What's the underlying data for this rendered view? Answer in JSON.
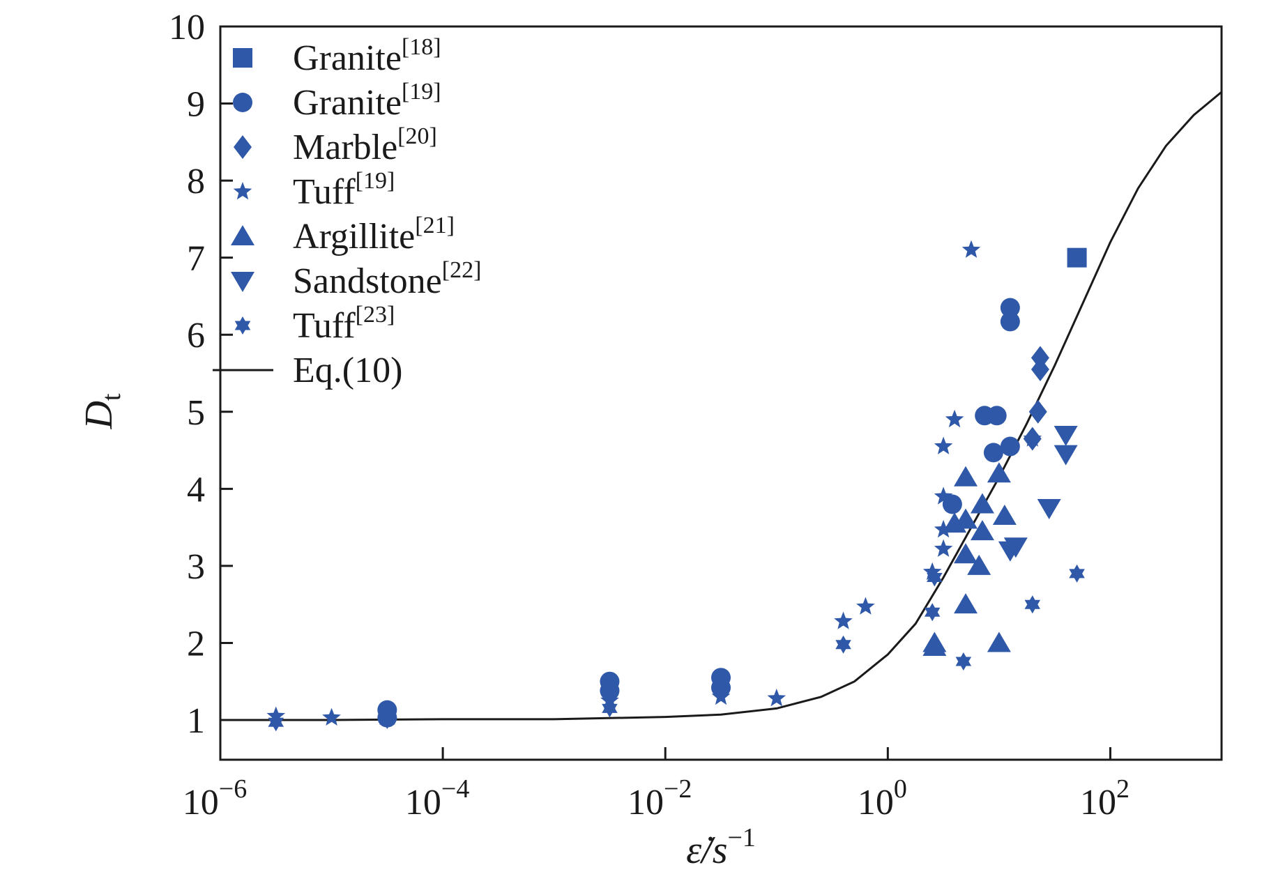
{
  "chart_data": {
    "type": "scatter",
    "title": "",
    "xlabel": "ε̇/s",
    "xlabel_sup": "−1",
    "ylabel": "D",
    "ylabel_sub": "t",
    "x_scale": "log10",
    "xlim_log10": [
      -6,
      3
    ],
    "ylim": [
      0.5,
      10
    ],
    "x_ticks": [
      {
        "base": "10",
        "exp": "−6",
        "log10": -6
      },
      {
        "base": "10",
        "exp": "−4",
        "log10": -4
      },
      {
        "base": "10",
        "exp": "−2",
        "log10": -2
      },
      {
        "base": "10",
        "exp": "0",
        "log10": 0
      },
      {
        "base": "10",
        "exp": "2",
        "log10": 2
      }
    ],
    "y_ticks": [
      "1",
      "2",
      "3",
      "4",
      "5",
      "6",
      "7",
      "8",
      "9",
      "10"
    ],
    "legend_position": "top-left",
    "marker_color": "#2f58a8",
    "line_color": "#1a1a1a",
    "series": [
      {
        "name": "Granite",
        "ref": "[18]",
        "marker": "square",
        "points": [
          [
            1.7,
            7.0
          ]
        ]
      },
      {
        "name": "Granite",
        "ref": "[19]",
        "marker": "circle",
        "points": [
          [
            -4.5,
            1.13
          ],
          [
            -4.5,
            1.03
          ],
          [
            -2.5,
            1.5
          ],
          [
            -2.5,
            1.38
          ],
          [
            -1.5,
            1.55
          ],
          [
            -1.5,
            1.42
          ],
          [
            0.58,
            3.8
          ],
          [
            0.87,
            4.95
          ],
          [
            0.95,
            4.47
          ],
          [
            0.98,
            4.95
          ],
          [
            1.1,
            6.35
          ],
          [
            1.1,
            6.17
          ],
          [
            1.1,
            4.55
          ]
        ]
      },
      {
        "name": "Marble",
        "ref": "[20]",
        "marker": "diamond",
        "points": [
          [
            1.37,
            5.7
          ],
          [
            1.37,
            5.55
          ],
          [
            1.35,
            5.0
          ],
          [
            1.3,
            4.65
          ]
        ]
      },
      {
        "name": "Tuff",
        "ref": "[19]",
        "marker": "star5",
        "points": [
          [
            -5.5,
            1.05
          ],
          [
            -5.0,
            1.03
          ],
          [
            -2.5,
            1.25
          ],
          [
            -1.5,
            1.3
          ],
          [
            -1.0,
            1.28
          ],
          [
            -0.4,
            2.28
          ],
          [
            -0.2,
            2.47
          ],
          [
            0.6,
            4.9
          ],
          [
            0.5,
            4.55
          ],
          [
            0.5,
            3.9
          ],
          [
            0.5,
            3.47
          ],
          [
            0.5,
            3.22
          ],
          [
            0.4,
            2.92
          ],
          [
            0.75,
            7.1
          ],
          [
            1.3,
            4.65
          ]
        ]
      },
      {
        "name": "Argillite",
        "ref": "[21]",
        "marker": "triangle-up",
        "points": [
          [
            0.42,
            2.0
          ],
          [
            0.42,
            1.95
          ],
          [
            0.6,
            3.55
          ],
          [
            0.7,
            4.15
          ],
          [
            0.7,
            3.6
          ],
          [
            0.7,
            3.15
          ],
          [
            0.7,
            2.5
          ],
          [
            0.82,
            3.0
          ],
          [
            0.85,
            3.8
          ],
          [
            0.85,
            3.45
          ],
          [
            1.0,
            4.2
          ],
          [
            1.05,
            3.65
          ],
          [
            1.0,
            2.0
          ]
        ]
      },
      {
        "name": "Sandstone",
        "ref": "[22]",
        "marker": "triangle-down",
        "points": [
          [
            1.15,
            3.25
          ],
          [
            1.1,
            3.2
          ],
          [
            1.45,
            3.75
          ],
          [
            1.6,
            4.7
          ],
          [
            1.6,
            4.45
          ]
        ]
      },
      {
        "name": "Tuff",
        "ref": "[23]",
        "marker": "star6",
        "points": [
          [
            -5.5,
            0.97
          ],
          [
            -4.5,
            1.0
          ],
          [
            -2.5,
            1.15
          ],
          [
            -1.5,
            1.4
          ],
          [
            -0.4,
            1.98
          ],
          [
            0.4,
            2.4
          ],
          [
            0.42,
            2.85
          ],
          [
            0.68,
            1.76
          ],
          [
            1.3,
            2.5
          ],
          [
            1.7,
            2.9
          ]
        ]
      }
    ],
    "curve": {
      "name": "Eq.(10)",
      "points": [
        [
          -6,
          1.0
        ],
        [
          -5,
          1.0
        ],
        [
          -4,
          1.01
        ],
        [
          -3,
          1.01
        ],
        [
          -2,
          1.04
        ],
        [
          -1.5,
          1.07
        ],
        [
          -1,
          1.15
        ],
        [
          -0.6,
          1.3
        ],
        [
          -0.3,
          1.5
        ],
        [
          0,
          1.85
        ],
        [
          0.25,
          2.25
        ],
        [
          0.5,
          2.85
        ],
        [
          0.75,
          3.5
        ],
        [
          1.0,
          4.15
        ],
        [
          1.25,
          4.85
        ],
        [
          1.5,
          5.6
        ],
        [
          1.75,
          6.4
        ],
        [
          2.0,
          7.2
        ],
        [
          2.25,
          7.9
        ],
        [
          2.5,
          8.45
        ],
        [
          2.75,
          8.85
        ],
        [
          3.0,
          9.15
        ]
      ]
    }
  }
}
